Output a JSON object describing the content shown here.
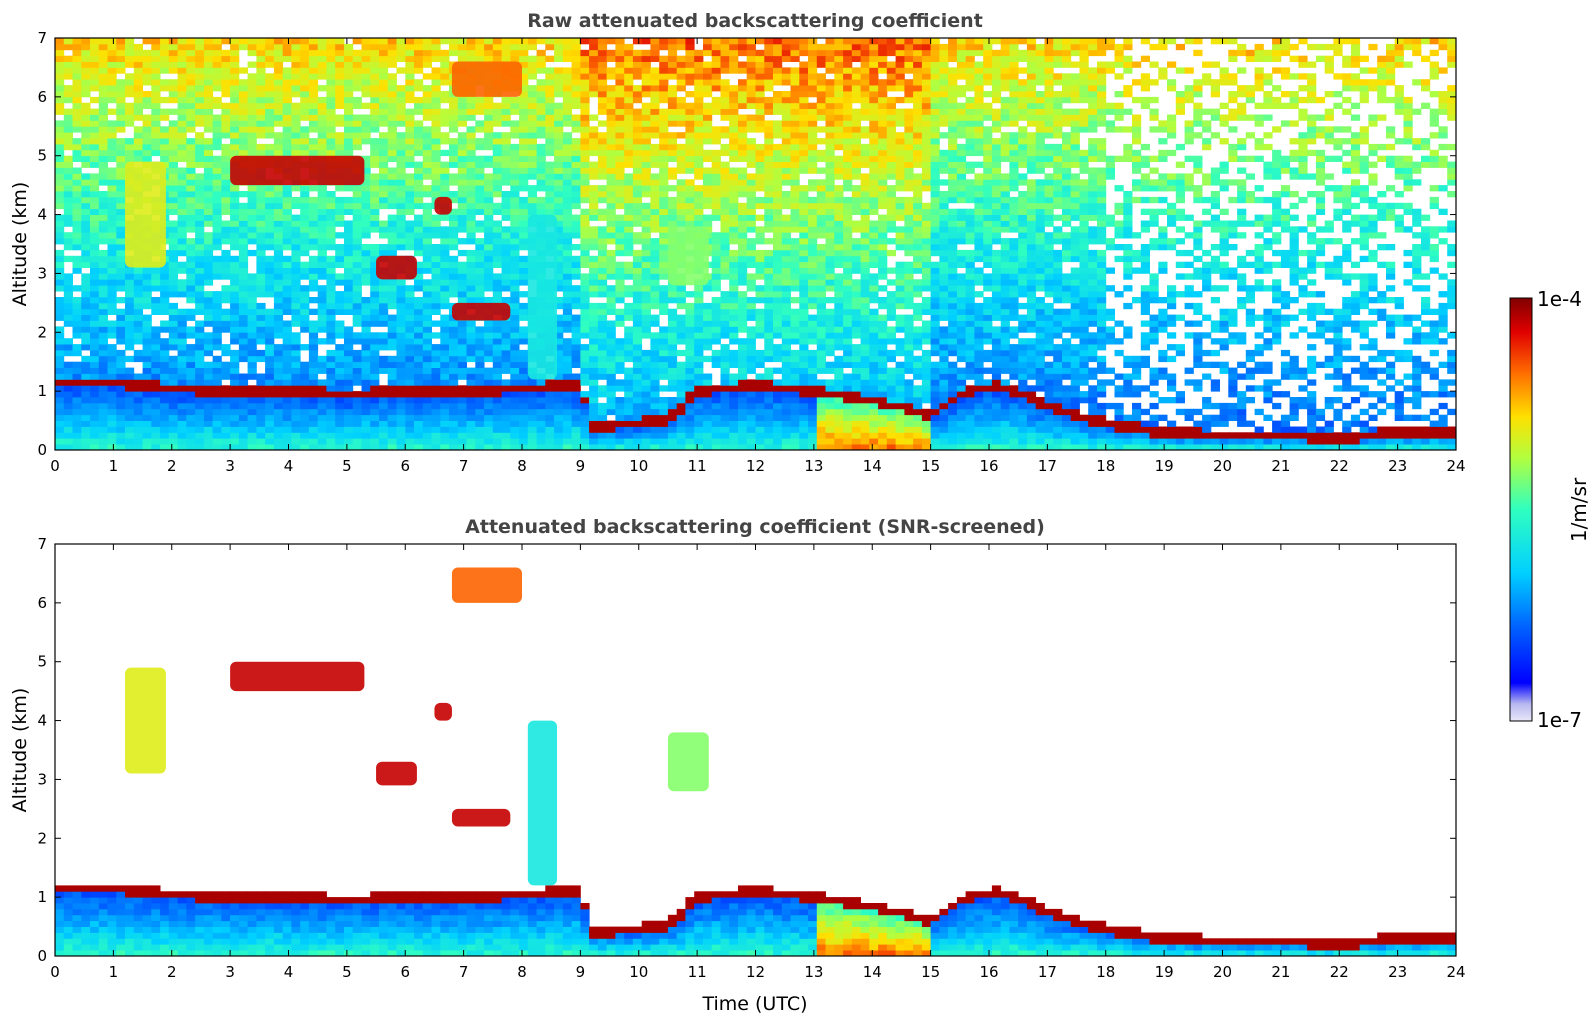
{
  "chart_data": [
    {
      "type": "heatmap",
      "title": "Raw attenuated backscattering coefficient",
      "xlabel": "",
      "ylabel": "Altitude (km)",
      "xlim": [
        0,
        24
      ],
      "ylim": [
        0,
        7
      ],
      "x_ticks": [
        "0",
        "1",
        "2",
        "3",
        "4",
        "5",
        "6",
        "7",
        "8",
        "9",
        "10",
        "11",
        "12",
        "13",
        "14",
        "15",
        "16",
        "17",
        "18",
        "19",
        "20",
        "21",
        "22",
        "23",
        "24"
      ],
      "y_ticks": [
        "0",
        "1",
        "2",
        "3",
        "4",
        "5",
        "6",
        "7"
      ],
      "boundary_layer": [
        {
          "t": 0,
          "h": 1.15
        },
        {
          "t": 1,
          "h": 1.15
        },
        {
          "t": 2,
          "h": 1.05
        },
        {
          "t": 3,
          "h": 1.0
        },
        {
          "t": 4,
          "h": 1.0
        },
        {
          "t": 5,
          "h": 0.95
        },
        {
          "t": 6,
          "h": 1.0
        },
        {
          "t": 7,
          "h": 1.0
        },
        {
          "t": 8,
          "h": 1.05
        },
        {
          "t": 9,
          "h": 1.1
        },
        {
          "t": 9.2,
          "h": 0.4
        },
        {
          "t": 10.5,
          "h": 0.5
        },
        {
          "t": 11,
          "h": 1.0
        },
        {
          "t": 12,
          "h": 1.1
        },
        {
          "t": 13,
          "h": 1.0
        },
        {
          "t": 14,
          "h": 0.85
        },
        {
          "t": 15,
          "h": 0.6
        },
        {
          "t": 15.6,
          "h": 1.0
        },
        {
          "t": 16.2,
          "h": 1.1
        },
        {
          "t": 17,
          "h": 0.75
        },
        {
          "t": 18,
          "h": 0.45
        },
        {
          "t": 19,
          "h": 0.3
        },
        {
          "t": 20,
          "h": 0.25
        },
        {
          "t": 21,
          "h": 0.25
        },
        {
          "t": 22,
          "h": 0.2
        },
        {
          "t": 23,
          "h": 0.3
        },
        {
          "t": 24,
          "h": 0.3
        }
      ],
      "cloud_features": [
        {
          "t0": 1.2,
          "t1": 1.9,
          "h0": 3.1,
          "h1": 4.9,
          "level": 0.7
        },
        {
          "t0": 3.0,
          "t1": 5.3,
          "h0": 4.5,
          "h1": 5.0,
          "level": 0.95
        },
        {
          "t0": 5.5,
          "t1": 6.2,
          "h0": 2.9,
          "h1": 3.3,
          "level": 0.95
        },
        {
          "t0": 6.5,
          "t1": 6.8,
          "h0": 4.0,
          "h1": 4.3,
          "level": 0.95
        },
        {
          "t0": 6.8,
          "t1": 7.8,
          "h0": 2.2,
          "h1": 2.5,
          "level": 0.95
        },
        {
          "t0": 6.8,
          "t1": 8.0,
          "h0": 6.0,
          "h1": 6.6,
          "level": 0.85
        },
        {
          "t0": 10.5,
          "t1": 11.2,
          "h0": 2.8,
          "h1": 3.8,
          "level": 0.6
        },
        {
          "t0": 8.1,
          "t1": 8.6,
          "h0": 1.2,
          "h1": 4.0,
          "level": 0.45
        }
      ]
    },
    {
      "type": "heatmap",
      "title": "Attenuated backscattering coefficient (SNR-screened)",
      "xlabel": "Time (UTC)",
      "ylabel": "Altitude (km)",
      "xlim": [
        0,
        24
      ],
      "ylim": [
        0,
        7
      ],
      "x_ticks": [
        "0",
        "1",
        "2",
        "3",
        "4",
        "5",
        "6",
        "7",
        "8",
        "9",
        "10",
        "11",
        "12",
        "13",
        "14",
        "15",
        "16",
        "17",
        "18",
        "19",
        "20",
        "21",
        "22",
        "23",
        "24"
      ],
      "y_ticks": [
        "0",
        "1",
        "2",
        "3",
        "4",
        "5",
        "6",
        "7"
      ]
    }
  ],
  "colorbar": {
    "label": "1/m/sr",
    "max_label": "1e-4",
    "min_label": "1e-7",
    "scale": "log",
    "range": [
      1e-07,
      0.0001
    ]
  },
  "colors": {
    "title": "#444444",
    "low": "#0000ff",
    "high": "#800000"
  }
}
